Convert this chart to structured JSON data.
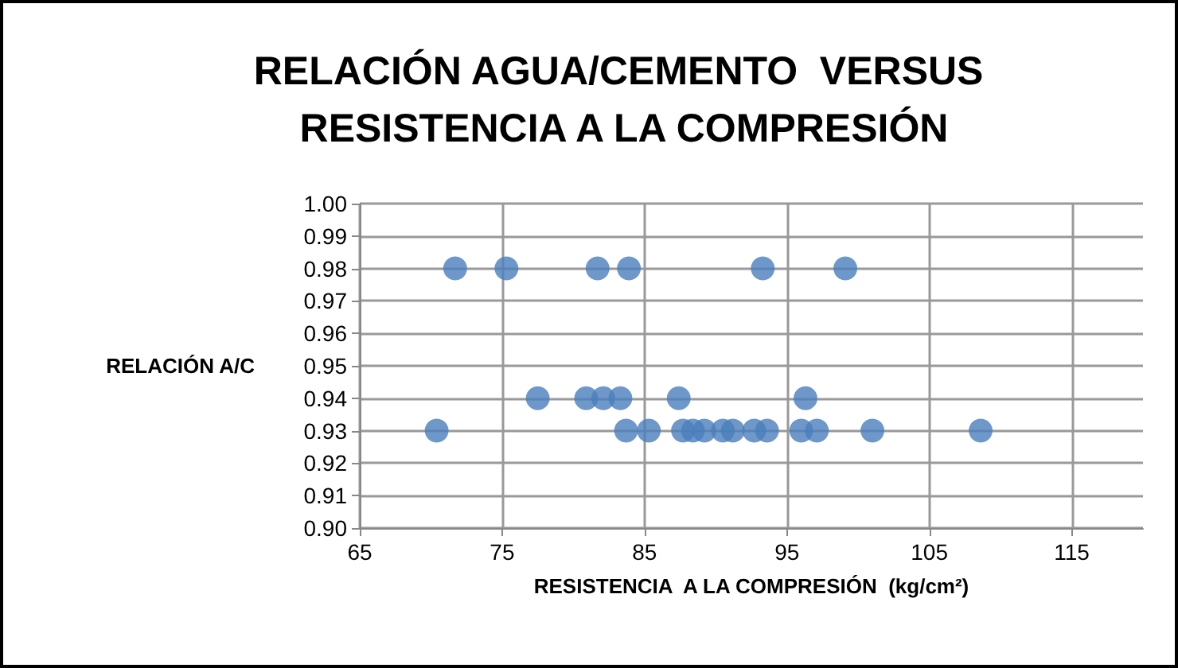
{
  "chart_data": {
    "type": "scatter",
    "title": "RELACIÓN AGUA/CEMENTO  VERSUS RESISTENCIA A LA COMPRESIÓN",
    "xlabel": "RESISTENCIA  A LA COMPRESIÓN  (kg/cm²)",
    "ylabel": "RELACIÓN A/C",
    "x": [
      71.7,
      75.3,
      81.7,
      83.9,
      93.3,
      99.1,
      77.5,
      80.9,
      82.1,
      83.3,
      87.4,
      96.3,
      70.4,
      83.7,
      85.3,
      87.7,
      88.4,
      89.2,
      90.5,
      91.2,
      92.7,
      93.6,
      96.0,
      97.1,
      101.0,
      108.6
    ],
    "values": [
      0.98,
      0.98,
      0.98,
      0.98,
      0.98,
      0.98,
      0.94,
      0.94,
      0.94,
      0.94,
      0.94,
      0.94,
      0.93,
      0.93,
      0.93,
      0.93,
      0.93,
      0.93,
      0.93,
      0.93,
      0.93,
      0.93,
      0.93,
      0.93,
      0.93,
      0.93
    ],
    "color": "#4a7ebb",
    "marker": "circle",
    "grid": true,
    "xlim": [
      65,
      120
    ],
    "xticks": [
      65,
      75,
      85,
      95,
      105,
      115
    ],
    "ylim": [
      0.9,
      1.0
    ],
    "yticks": [
      {
        "value": 0.9,
        "label": "0.90"
      },
      0.91,
      0.92,
      0.93,
      0.94,
      0.95,
      0.96,
      0.97,
      0.98,
      0.99,
      {
        "value": 1.0,
        "label": "1.00"
      }
    ]
  }
}
